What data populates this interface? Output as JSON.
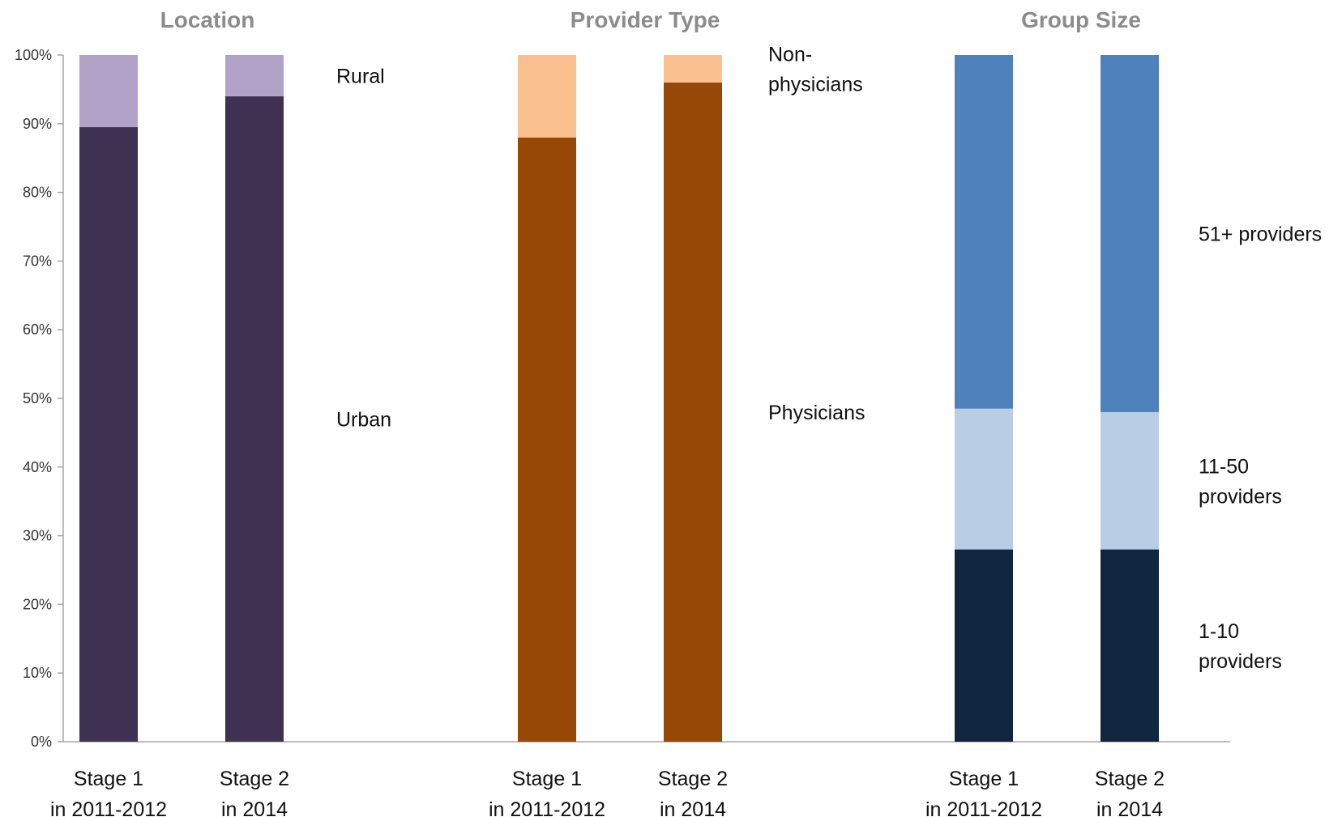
{
  "chart_data": {
    "type": "bar",
    "stacked": true,
    "ylim": [
      0,
      100
    ],
    "y_ticks": [
      "0%",
      "10%",
      "20%",
      "30%",
      "40%",
      "50%",
      "60%",
      "70%",
      "80%",
      "90%",
      "100%"
    ],
    "panels": [
      {
        "title": "Location",
        "categories": [
          [
            "Stage 1",
            "in 2011-2012"
          ],
          [
            "Stage 2",
            "in 2014"
          ]
        ],
        "series": [
          {
            "name": "Urban",
            "label_lines": [
              "Urban"
            ],
            "color": "#3f3151",
            "values": [
              89.5,
              94
            ]
          },
          {
            "name": "Rural",
            "label_lines": [
              "Rural"
            ],
            "color": "#b3a2c7",
            "values": [
              10.5,
              6
            ]
          }
        ]
      },
      {
        "title": "Provider Type",
        "categories": [
          [
            "Stage 1",
            "in 2011-2012"
          ],
          [
            "Stage 2",
            "in 2014"
          ]
        ],
        "series": [
          {
            "name": "Physicians",
            "label_lines": [
              "Physicians"
            ],
            "color": "#974706",
            "values": [
              88,
              96
            ]
          },
          {
            "name": "Non-physicians",
            "label_lines": [
              "Non-",
              "physicians"
            ],
            "color": "#fac090",
            "values": [
              12,
              4
            ]
          }
        ]
      },
      {
        "title": "Group Size",
        "categories": [
          [
            "Stage 1",
            "in 2011-2012"
          ],
          [
            "Stage 2",
            "in 2014"
          ]
        ],
        "series": [
          {
            "name": "1-10 providers",
            "label_lines": [
              "1-10",
              "providers"
            ],
            "color": "#10253f",
            "values": [
              28,
              28
            ]
          },
          {
            "name": "11-50 providers",
            "label_lines": [
              "11-50",
              "providers"
            ],
            "color": "#b9cde5",
            "values": [
              20.5,
              20
            ]
          },
          {
            "name": "51+ providers",
            "label_lines": [
              "51+ providers"
            ],
            "color": "#4f81bd",
            "values": [
              51.5,
              52
            ]
          }
        ]
      }
    ]
  }
}
